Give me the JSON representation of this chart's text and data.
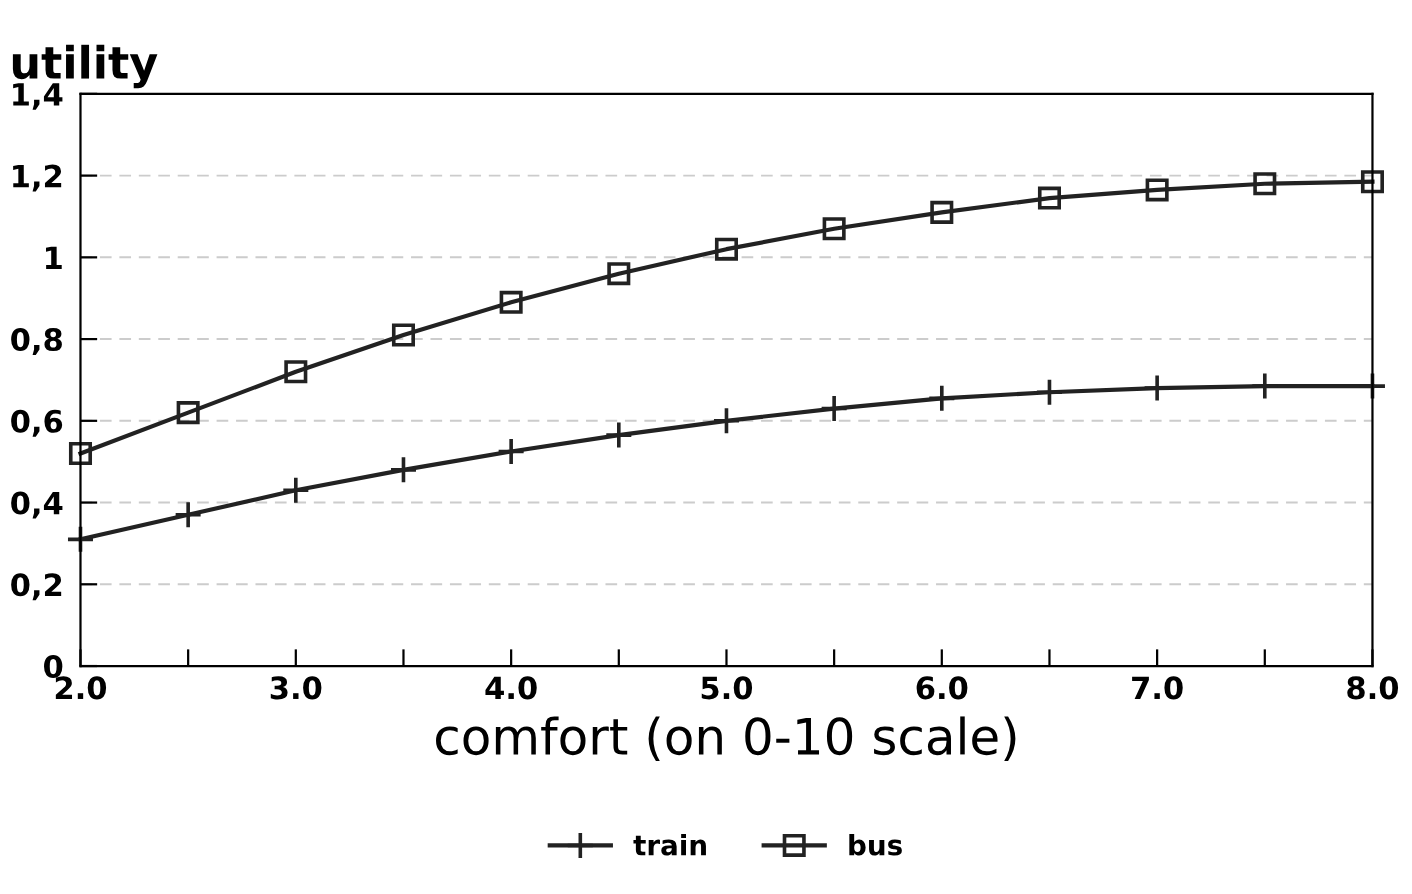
{
  "chart_data": {
    "type": "line",
    "ylabel": "utility",
    "xlabel": "comfort (on 0-10 scale)",
    "x": [
      2.0,
      2.5,
      3.0,
      3.5,
      4.0,
      4.5,
      5.0,
      5.5,
      6.0,
      6.5,
      7.0,
      7.5,
      8.0
    ],
    "series": [
      {
        "name": "train",
        "color": "#222222",
        "marker": "cross",
        "values": [
          0.31,
          0.37,
          0.43,
          0.48,
          0.525,
          0.565,
          0.6,
          0.63,
          0.655,
          0.67,
          0.68,
          0.685,
          0.685
        ]
      },
      {
        "name": "bus",
        "color": "#222222",
        "marker": "square",
        "values": [
          0.52,
          0.62,
          0.72,
          0.81,
          0.89,
          0.96,
          1.02,
          1.07,
          1.11,
          1.145,
          1.165,
          1.18,
          1.185
        ]
      }
    ],
    "xlim": [
      2.0,
      8.0
    ],
    "xticks": [
      {
        "value": 2.0,
        "label": "2.0"
      },
      {
        "value": 2.5,
        "label": null
      },
      {
        "value": 3.0,
        "label": "3.0"
      },
      {
        "value": 3.5,
        "label": null
      },
      {
        "value": 4.0,
        "label": "4.0"
      },
      {
        "value": 4.5,
        "label": null
      },
      {
        "value": 5.0,
        "label": "5.0"
      },
      {
        "value": 5.5,
        "label": null
      },
      {
        "value": 6.0,
        "label": "6.0"
      },
      {
        "value": 6.5,
        "label": null
      },
      {
        "value": 7.0,
        "label": "7.0"
      },
      {
        "value": 7.5,
        "label": null
      },
      {
        "value": 8.0,
        "label": "8.0"
      }
    ],
    "ylim": [
      0,
      1.4
    ],
    "yticks": [
      0,
      {
        "value": 0.2,
        "label": "0,2"
      },
      {
        "value": 0.4,
        "label": "0,4"
      },
      {
        "value": 0.6,
        "label": "0,6"
      },
      {
        "value": 0.8,
        "label": "0,8"
      },
      1,
      {
        "value": 1.2,
        "label": "1,2"
      },
      {
        "value": 1.4,
        "label": "1,4"
      }
    ],
    "grid": "y",
    "legend": "bottom",
    "line_style": "solid"
  }
}
